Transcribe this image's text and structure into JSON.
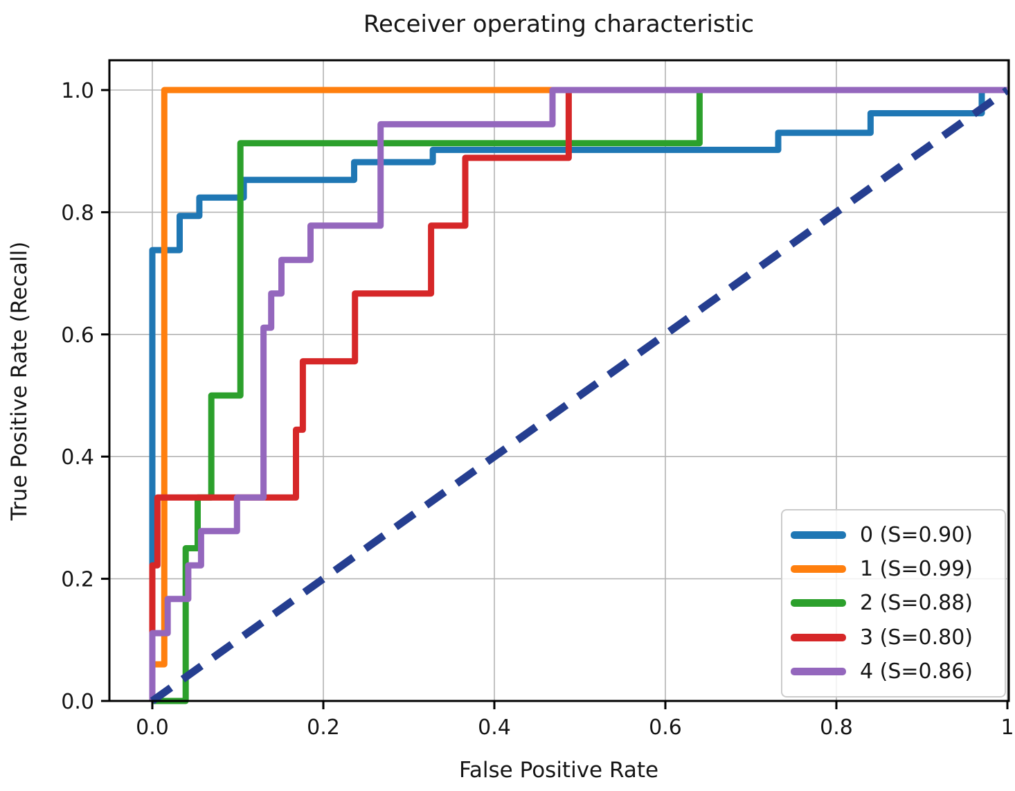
{
  "chart_data": {
    "type": "line",
    "subtype": "roc_step_curves",
    "title": "Receiver operating characteristic",
    "xlabel": "False Positive Rate",
    "ylabel": "True Positive Rate (Recall)",
    "xlim": [
      -0.05,
      1.0
    ],
    "ylim": [
      0.0,
      1.05
    ],
    "grid": true,
    "grid_color": "#b3b3b3",
    "frame_color": "#000000",
    "background_color": "#ffffff",
    "legend_position": "lower right",
    "x_ticks": {
      "values": [
        0,
        0.2,
        0.4,
        0.6,
        0.8,
        1.0
      ],
      "labels": [
        "0.0",
        "0.2",
        "0.4",
        "0.6",
        "0.8",
        "1"
      ]
    },
    "y_ticks": {
      "values": [
        0,
        0.2,
        0.4,
        0.6,
        0.8,
        1.0
      ],
      "labels": [
        "0.0",
        "0.2",
        "0.4",
        "0.6",
        "0.8",
        "1.0"
      ]
    },
    "series": [
      {
        "name": "class-0",
        "label": "0 (S=0.90)",
        "color": "#1f77b4",
        "points": [
          [
            0,
            0
          ],
          [
            0,
            0.738
          ],
          [
            0.032,
            0.738
          ],
          [
            0.032,
            0.794
          ],
          [
            0.055,
            0.794
          ],
          [
            0.055,
            0.824
          ],
          [
            0.107,
            0.824
          ],
          [
            0.107,
            0.853
          ],
          [
            0.236,
            0.853
          ],
          [
            0.236,
            0.882
          ],
          [
            0.328,
            0.882
          ],
          [
            0.328,
            0.902
          ],
          [
            0.732,
            0.902
          ],
          [
            0.732,
            0.93
          ],
          [
            0.84,
            0.93
          ],
          [
            0.84,
            0.962
          ],
          [
            0.97,
            0.962
          ],
          [
            0.97,
            1.0
          ],
          [
            1.0,
            1.0
          ]
        ]
      },
      {
        "name": "class-1",
        "label": "1 (S=0.99)",
        "color": "#ff7f0e",
        "points": [
          [
            0,
            0
          ],
          [
            0,
            0.06
          ],
          [
            0.014,
            0.06
          ],
          [
            0.014,
            1.0
          ],
          [
            1.0,
            1.0
          ]
        ]
      },
      {
        "name": "class-2",
        "label": "2 (S=0.88)",
        "color": "#2ca02c",
        "points": [
          [
            0,
            0
          ],
          [
            0.039,
            0
          ],
          [
            0.039,
            0.25
          ],
          [
            0.053,
            0.25
          ],
          [
            0.053,
            0.333
          ],
          [
            0.069,
            0.333
          ],
          [
            0.069,
            0.5
          ],
          [
            0.103,
            0.5
          ],
          [
            0.103,
            0.913
          ],
          [
            0.64,
            0.913
          ],
          [
            0.64,
            1.0
          ],
          [
            1.0,
            1.0
          ]
        ]
      },
      {
        "name": "class-3",
        "label": "3 (S=0.80)",
        "color": "#d62728",
        "points": [
          [
            0,
            0
          ],
          [
            0,
            0.222
          ],
          [
            0.006,
            0.222
          ],
          [
            0.006,
            0.333
          ],
          [
            0.168,
            0.333
          ],
          [
            0.168,
            0.444
          ],
          [
            0.176,
            0.444
          ],
          [
            0.176,
            0.556
          ],
          [
            0.237,
            0.556
          ],
          [
            0.237,
            0.667
          ],
          [
            0.326,
            0.667
          ],
          [
            0.326,
            0.778
          ],
          [
            0.366,
            0.778
          ],
          [
            0.366,
            0.889
          ],
          [
            0.487,
            0.889
          ],
          [
            0.487,
            1.0
          ],
          [
            1.0,
            1.0
          ]
        ]
      },
      {
        "name": "class-4",
        "label": "4 (S=0.86)",
        "color": "#9467bd",
        "points": [
          [
            0,
            0
          ],
          [
            0,
            0.111
          ],
          [
            0.018,
            0.111
          ],
          [
            0.018,
            0.167
          ],
          [
            0.042,
            0.167
          ],
          [
            0.042,
            0.222
          ],
          [
            0.057,
            0.222
          ],
          [
            0.057,
            0.278
          ],
          [
            0.099,
            0.278
          ],
          [
            0.099,
            0.333
          ],
          [
            0.13,
            0.333
          ],
          [
            0.13,
            0.611
          ],
          [
            0.139,
            0.611
          ],
          [
            0.139,
            0.667
          ],
          [
            0.151,
            0.667
          ],
          [
            0.151,
            0.722
          ],
          [
            0.185,
            0.722
          ],
          [
            0.185,
            0.778
          ],
          [
            0.267,
            0.778
          ],
          [
            0.267,
            0.944
          ],
          [
            0.468,
            0.944
          ],
          [
            0.468,
            1.0
          ],
          [
            1.0,
            1.0
          ]
        ]
      }
    ],
    "reference_line": {
      "name": "chance-diagonal",
      "style": "dashed",
      "color": "#253e90",
      "points": [
        [
          0,
          0
        ],
        [
          1.0,
          1.0
        ]
      ]
    }
  }
}
